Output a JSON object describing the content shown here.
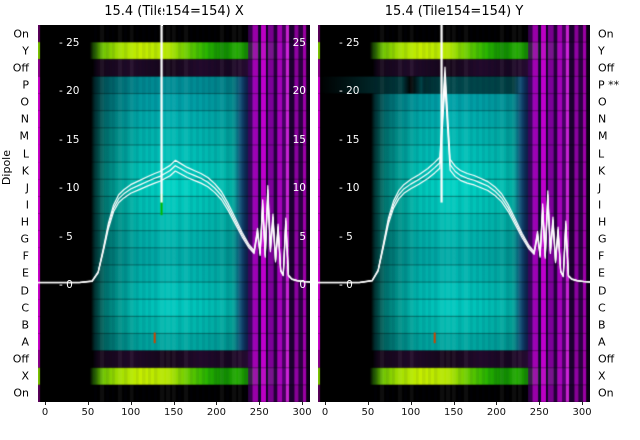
{
  "figure": {
    "panels": [
      {
        "id": "x",
        "title": "15.4 (Tile154=154) X"
      },
      {
        "id": "y",
        "title": "15.4 (Tile154=154) Y"
      }
    ],
    "ylabel_left": "Dipole"
  },
  "dipole_labels_left": [
    "On",
    "Y",
    "Off",
    "P",
    "O",
    "N",
    "M",
    "L",
    "K",
    "J",
    "I",
    "H",
    "G",
    "F",
    "E",
    "D",
    "C",
    "B",
    "A",
    "Off",
    "X",
    "On"
  ],
  "dipole_labels_right": [
    "On",
    "Y",
    "Off",
    "P **",
    "O",
    "N",
    "M",
    "L",
    "K",
    "J",
    "I",
    "H",
    "G",
    "F",
    "E",
    "D",
    "C",
    "B",
    "A",
    "Off",
    "X",
    "On"
  ],
  "chart_data": {
    "type": "heatmap",
    "description": "Per-dipole spectrum waterfall for Tile154, X and Y polarisations, with overlaid white bandpass line plots",
    "x_axis": {
      "ticks": [
        0,
        50,
        100,
        150,
        200,
        250,
        300
      ],
      "range": [
        0,
        318
      ]
    },
    "overlay_axis": {
      "ticks": [
        25,
        20,
        15,
        10,
        5,
        0
      ],
      "label_format": "- {v}"
    },
    "rows": [
      {
        "label": "On",
        "type": "on"
      },
      {
        "label": "Y",
        "type": "bright"
      },
      {
        "label": "Off",
        "type": "off"
      },
      {
        "label": "P",
        "type": "dipole",
        "color": "#008e96"
      },
      {
        "label": "O",
        "type": "dipole",
        "color": "#00a2a8"
      },
      {
        "label": "N",
        "type": "dipole",
        "color": "#00b0b0"
      },
      {
        "label": "M",
        "type": "dipole",
        "color": "#00b8b2"
      },
      {
        "label": "L",
        "type": "dipole",
        "color": "#00c2ba"
      },
      {
        "label": "K",
        "type": "dipole",
        "color": "#00ccc0"
      },
      {
        "label": "J",
        "type": "dipole",
        "color": "#00d2c4"
      },
      {
        "label": "I",
        "type": "dipole",
        "color": "#00c8bc"
      },
      {
        "label": "H",
        "type": "dipole",
        "color": "#00beb4"
      },
      {
        "label": "G",
        "type": "dipole",
        "color": "#00b4ae"
      },
      {
        "label": "F",
        "type": "dipole",
        "color": "#00aca8"
      },
      {
        "label": "E",
        "type": "dipole",
        "color": "#00b6b0"
      },
      {
        "label": "D",
        "type": "dipole",
        "color": "#00c0b8"
      },
      {
        "label": "C",
        "type": "dipole",
        "color": "#00c8be"
      },
      {
        "label": "B",
        "type": "dipole",
        "color": "#00bab0"
      },
      {
        "label": "A",
        "type": "dipole",
        "color": "#00a8a2"
      },
      {
        "label": "Off",
        "type": "off"
      },
      {
        "label": "X",
        "type": "bright"
      },
      {
        "label": "On",
        "type": "on"
      }
    ],
    "flagged_row": {
      "panel": 1,
      "row_index": 3,
      "dim": 0.5,
      "black_until": 0.34
    },
    "stripes": [
      [
        237,
        5,
        "#460064",
        0.75
      ],
      [
        242,
        7,
        "#be00d2",
        0.8
      ],
      [
        249,
        3,
        "#0a0a28",
        0.9
      ],
      [
        252,
        6,
        "#dc00e6",
        0.85
      ],
      [
        258,
        2,
        "#050520",
        0.95
      ],
      [
        260,
        7,
        "#a000be",
        0.75
      ],
      [
        267,
        4,
        "#280040",
        0.85
      ],
      [
        271,
        6,
        "#c800dc",
        0.8
      ],
      [
        277,
        4,
        "#5a0078",
        0.75
      ],
      [
        281,
        4,
        "#e628f0",
        0.85
      ],
      [
        285,
        6,
        "#1e0032",
        0.9
      ],
      [
        291,
        5,
        "#b400c8",
        0.75
      ],
      [
        296,
        5,
        "#32004b",
        0.85
      ],
      [
        301,
        4,
        "#c000cc",
        0.8
      ],
      [
        305,
        13,
        "#0a0014",
        0.95
      ]
    ],
    "series": {
      "x": [
        0,
        40,
        55,
        62,
        68,
        74,
        80,
        86,
        92,
        100,
        110,
        120,
        128,
        134,
        140,
        146,
        152,
        158,
        166,
        174,
        182,
        190,
        198,
        206,
        214,
        222,
        230,
        238,
        244,
        248,
        251,
        254,
        257,
        260,
        263,
        266,
        269,
        272,
        275,
        278,
        281,
        284,
        288,
        294,
        302,
        312
      ],
      "X": [
        0.25,
        0.25,
        0.4,
        1.3,
        3.6,
        6.1,
        7.9,
        8.9,
        9.4,
        9.9,
        10.3,
        10.7,
        11.0,
        11.2,
        11.5,
        11.8,
        12.3,
        12.0,
        11.6,
        11.3,
        11.0,
        10.6,
        10.0,
        9.2,
        8.0,
        6.6,
        5.2,
        4.0,
        3.4,
        5.6,
        3.2,
        8.4,
        3.0,
        9.8,
        3.6,
        7.0,
        2.5,
        6.0,
        1.5,
        1.0,
        6.6,
        1.0,
        0.6,
        0.45,
        0.35,
        0.3
      ],
      "Y": [
        0.25,
        0.25,
        0.45,
        1.5,
        4.0,
        6.6,
        8.3,
        9.3,
        9.9,
        10.4,
        10.9,
        11.5,
        12.1,
        12.6,
        21.5,
        12.4,
        11.7,
        11.3,
        11.0,
        10.8,
        10.5,
        10.2,
        9.7,
        9.0,
        7.9,
        6.5,
        5.1,
        3.9,
        3.3,
        5.3,
        3.0,
        8.0,
        2.9,
        9.3,
        3.4,
        6.7,
        2.4,
        5.7,
        1.4,
        0.9,
        6.3,
        0.95,
        0.6,
        0.45,
        0.35,
        0.3
      ]
    },
    "spike": {
      "x": 136,
      "base_value": 8.5,
      "top_value": 30
    },
    "markers": {
      "green_segment": {
        "panel": 0,
        "x": 136,
        "v0": 7.2,
        "v1": 9.4,
        "color": "#00bb00"
      },
      "orange_tick": {
        "x": 128,
        "v0": -4.9,
        "v1": -6.0,
        "color": "#cc4400"
      }
    },
    "colors": {
      "curve": "#ffffff",
      "background": "#000000"
    }
  }
}
